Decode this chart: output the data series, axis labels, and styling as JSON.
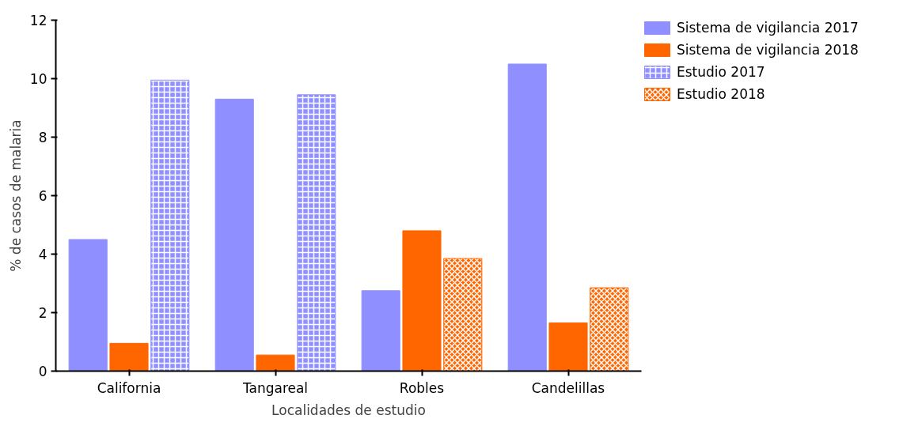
{
  "chart_data": {
    "type": "bar",
    "xlabel": "Localidades de estudio",
    "ylabel": "% de casos de malaria",
    "categories": [
      "California",
      "Tangareal",
      "Robles",
      "Candelillas"
    ],
    "series": [
      {
        "name": "Sistema de vigilancia 2017",
        "color": "#8f8fff",
        "values": [
          4.5,
          9.3,
          2.75,
          10.5
        ]
      },
      {
        "name": "Sistema de vigilancia 2018",
        "color": "#ff6600",
        "values": [
          0.95,
          0.55,
          4.8,
          1.65
        ]
      },
      {
        "name": "Estudio 2017",
        "color": "#8f8fff",
        "values": [
          9.95,
          9.45,
          null,
          null
        ]
      },
      {
        "name": "Estudio 2018",
        "color": "#ff6600",
        "values": [
          null,
          null,
          3.85,
          2.85
        ]
      }
    ],
    "ylim": [
      0,
      12
    ],
    "yticks": [
      0,
      2,
      4,
      6,
      8,
      10,
      12
    ],
    "grid": false,
    "legend": "top right"
  }
}
